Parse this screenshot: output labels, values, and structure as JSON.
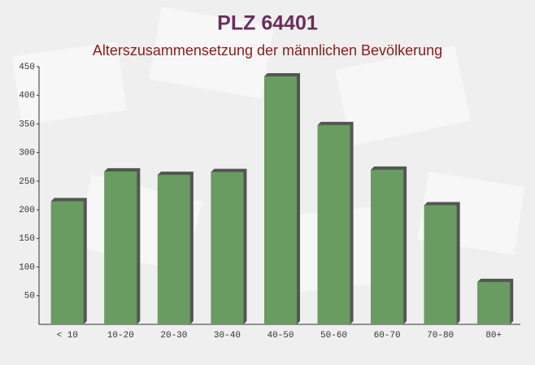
{
  "chart_data": {
    "type": "bar",
    "title": "PLZ 64401",
    "subtitle": "Alterszusammensetzung der männlichen Bevölkerung",
    "categories": [
      "< 10",
      "10-20",
      "20-30",
      "30-40",
      "40-50",
      "50-60",
      "60-70",
      "70-80",
      "80+"
    ],
    "values": [
      215,
      267,
      261,
      266,
      433,
      348,
      270,
      208,
      74
    ],
    "color": "#6aa061",
    "ylim": [
      0,
      450
    ],
    "yticks": [
      50,
      100,
      150,
      200,
      250,
      300,
      350,
      400,
      450
    ],
    "grid": false
  }
}
